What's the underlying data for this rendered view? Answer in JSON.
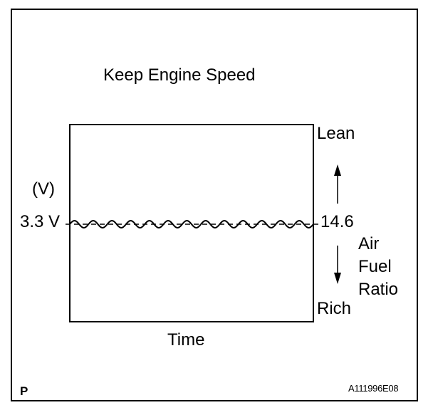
{
  "figure": {
    "title": "Keep Engine Speed",
    "corner_mark": "P",
    "figure_id": "A111996E08"
  },
  "labels": {
    "y_unit": "(V)",
    "y_value": "3.3 V",
    "x_label": "Time",
    "right_value": "14.6",
    "top_label": "Lean",
    "bottom_label": "Rich",
    "right_axis_lines": [
      "Air",
      "Fuel",
      "Ratio"
    ]
  },
  "signal": {
    "voltage": 3.3,
    "air_fuel_ratio": 14.6,
    "cycles": 13
  },
  "icons": {
    "up": "arrow-up-icon",
    "down": "arrow-down-icon"
  },
  "colors": {
    "line": "#000000",
    "background": "#ffffff"
  }
}
